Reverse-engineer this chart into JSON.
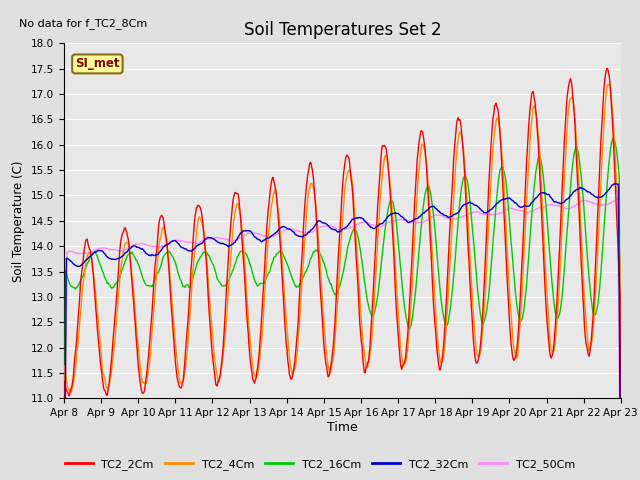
{
  "title": "Soil Temperatures Set 2",
  "xlabel": "Time",
  "ylabel": "Soil Temperature (C)",
  "note": "No data for f_TC2_8Cm",
  "ylim": [
    11.0,
    18.0
  ],
  "yticks": [
    11.0,
    11.5,
    12.0,
    12.5,
    13.0,
    13.5,
    14.0,
    14.5,
    15.0,
    15.5,
    16.0,
    16.5,
    17.0,
    17.5,
    18.0
  ],
  "xtick_labels": [
    "Apr 8",
    "Apr 9",
    "Apr 10",
    "Apr 11",
    "Apr 12",
    "Apr 13",
    "Apr 14",
    "Apr 15",
    "Apr 16",
    "Apr 17",
    "Apr 18",
    "Apr 19",
    "Apr 20",
    "Apr 21",
    "Apr 22",
    "Apr 23"
  ],
  "colors": {
    "TC2_2Cm": "#ff0000",
    "TC2_4Cm": "#ff8c00",
    "TC2_16Cm": "#00cc00",
    "TC2_32Cm": "#0000cc",
    "TC2_50Cm": "#ff88ff"
  },
  "bg_color": "#e0e0e0",
  "plot_bg_color": "#e8e8e8",
  "annotation_box_color": "#ffff99",
  "annotation_text": "SI_met",
  "annotation_text_color": "#8b0000",
  "figsize": [
    6.4,
    4.8
  ],
  "dpi": 100
}
